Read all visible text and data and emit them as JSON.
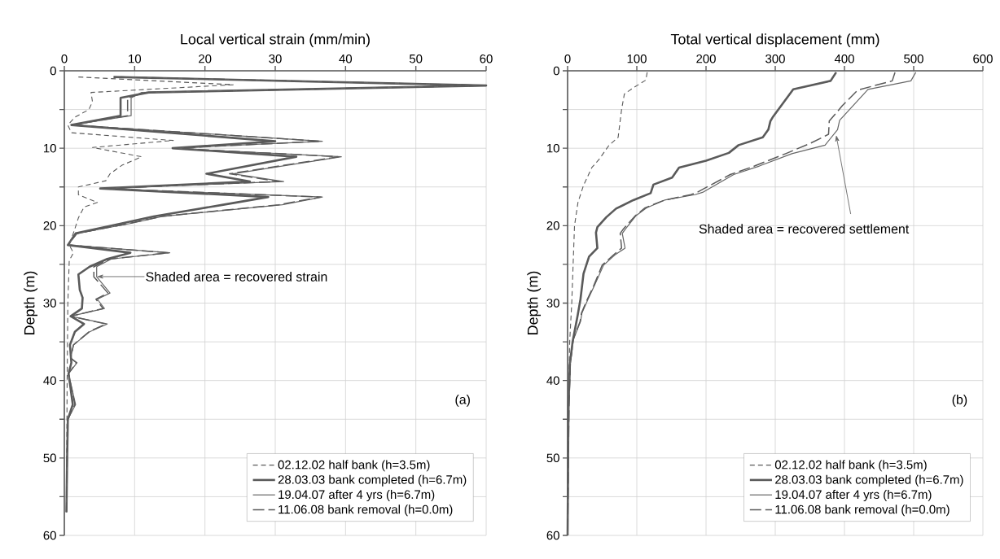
{
  "chart_data": [
    {
      "type": "line",
      "xlabel": "Local vertical strain (mm/min)",
      "ylabel": "Depth (m)",
      "xlim": [
        0,
        60
      ],
      "xticks": [
        0,
        10,
        20,
        30,
        40,
        50,
        60
      ],
      "ylim": [
        60,
        0
      ],
      "yticks": [
        0,
        {
          "value": 5,
          "label": null
        },
        10,
        {
          "value": 15,
          "label": null
        },
        20,
        {
          "value": 25,
          "label": null
        },
        30,
        {
          "value": 35,
          "label": null
        },
        40,
        {
          "value": 45,
          "label": null
        },
        50,
        {
          "value": 55,
          "label": null
        },
        60
      ],
      "grid": true,
      "legend": "bottom right",
      "annotations": [
        "Shaded area = recovered strain",
        "(a)"
      ],
      "series": [
        {
          "name": "02.12.02 half bank (h=3.5m)",
          "color": "#5a5a5a",
          "line_style": "dashed",
          "x": [
            2,
            24,
            3.8,
            4,
            3.5,
            1.5,
            0.5,
            1,
            15.5,
            4,
            11,
            8.2,
            6.5,
            5.9,
            2,
            2,
            4.7,
            2.8,
            2,
            1.5,
            0.7,
            1.3,
            0.7,
            0.5,
            0.4,
            0.3
          ],
          "values": [
            0.8,
            1.8,
            2.8,
            4,
            5,
            6,
            7,
            8,
            9,
            9.9,
            11.1,
            12.2,
            13.3,
            14.2,
            15,
            16,
            17,
            17.6,
            19,
            20.4,
            22.5,
            23.5,
            24.5,
            30,
            40,
            57
          ]
        },
        {
          "name": "28.03.03 bank completed (h=6.7m)",
          "color": "#5a5a5a",
          "line_style": "solid",
          "x": [
            7,
            60,
            12,
            8,
            8,
            1,
            30,
            15.4,
            33,
            20.2,
            26.4,
            5.1,
            29,
            22.6,
            12.7,
            8.2,
            1.6,
            0.5,
            9.4,
            6.1,
            3.6,
            2,
            2.2,
            2.6,
            2.5,
            0.9,
            2.8,
            1.5,
            0.8,
            1,
            0.6,
            1.2,
            0.5,
            0.4,
            0.3
          ],
          "values": [
            0.8,
            1.9,
            2.8,
            3.5,
            5.8,
            7,
            9.1,
            10,
            11.1,
            13.3,
            14.3,
            15.2,
            16.3,
            17.3,
            18.8,
            19.7,
            21,
            22.5,
            23.5,
            24.3,
            25.3,
            26.3,
            28.3,
            29.3,
            30.7,
            31.7,
            32.7,
            33.7,
            35.4,
            37.7,
            39.1,
            43.1,
            45,
            50,
            57
          ]
        },
        {
          "name": "19.04.07 after 4 yrs (h=6.7m)",
          "color": "#666666",
          "line_style": "solid",
          "x": [
            8,
            60,
            11,
            9.5,
            9.5,
            1,
            36.7,
            15.5,
            39.4,
            24,
            31.2,
            5.1,
            36.7,
            31,
            14,
            9.5,
            1.8,
            0.5,
            15,
            6.7,
            4.6,
            4.6,
            6.5,
            4.7,
            5.7,
            0.9,
            6.1,
            3.6,
            1.3,
            0.9,
            1.8,
            0.6,
            1.6,
            0.5,
            0.4,
            0.3
          ],
          "values": [
            0.8,
            1.9,
            2.8,
            3.5,
            5.8,
            7,
            9.1,
            10,
            11.1,
            13.3,
            14.3,
            15.2,
            16.3,
            17.3,
            18.8,
            19.7,
            21,
            22.5,
            23.5,
            24.3,
            25.3,
            26.6,
            28.7,
            29.5,
            30.7,
            31.7,
            32.7,
            33.7,
            35.4,
            37.1,
            37.7,
            39.1,
            43.1,
            45,
            50,
            57
          ]
        },
        {
          "name": "11.06.08 bank removal (h=0.0m)",
          "color": "#5a5a5a",
          "line_style": "dashed",
          "x": [
            8,
            60,
            11.5,
            9,
            9,
            1,
            36.5,
            15.5,
            39,
            23.5,
            30.5,
            5.1,
            36.5,
            30.5,
            13.8,
            9.3,
            1.8,
            0.5,
            14.8,
            6.5,
            4.2,
            4.2,
            6.2,
            4.5,
            5.5,
            0.9,
            5.9,
            3.5,
            1.3,
            0.9,
            1.7,
            0.6,
            1.5,
            0.5,
            0.4,
            0.3
          ],
          "values": [
            0.8,
            1.9,
            2.8,
            3.5,
            5.8,
            7,
            9.1,
            10,
            11.1,
            13.3,
            14.3,
            15.2,
            16.3,
            17.3,
            18.8,
            19.7,
            21,
            22.5,
            23.5,
            24.3,
            25.3,
            26.6,
            28.7,
            29.5,
            30.7,
            31.7,
            32.7,
            33.7,
            35.4,
            37.1,
            37.7,
            39.1,
            43.1,
            45,
            50,
            57
          ]
        }
      ]
    },
    {
      "type": "line",
      "xlabel": "Total vertical displacement (mm)",
      "ylabel": "Depth (m)",
      "xlim": [
        0,
        600
      ],
      "xticks": [
        0,
        100,
        200,
        300,
        400,
        500,
        600
      ],
      "ylim": [
        60,
        0
      ],
      "yticks": [
        0,
        {
          "value": 5,
          "label": null
        },
        10,
        {
          "value": 15,
          "label": null
        },
        20,
        {
          "value": 25,
          "label": null
        },
        30,
        {
          "value": 35,
          "label": null
        },
        40,
        {
          "value": 45,
          "label": null
        },
        50,
        {
          "value": 55,
          "label": null
        },
        60
      ],
      "grid": true,
      "legend": "bottom right",
      "annotations": [
        {
          "text": "Shaded area = recovered settlement",
          "x": 388,
          "y": 8.3
        },
        "(b)"
      ],
      "series": [
        {
          "name": "02.12.02 half bank (h=3.5m)",
          "color": "#5a5a5a",
          "line_style": "dashed",
          "x": [
            115,
            113,
            95,
            82,
            78,
            73,
            60,
            45,
            35,
            23,
            15,
            10,
            6,
            3,
            2,
            1,
            0
          ],
          "values": [
            0.2,
            1.2,
            2.2,
            3,
            5,
            8.6,
            9.6,
            11.5,
            12.5,
            14.8,
            17,
            20,
            30,
            35,
            40,
            45,
            55
          ]
        },
        {
          "name": "28.03.03 bank completed (h=6.7m)",
          "color": "#5a5a5a",
          "line_style": "solid",
          "x": [
            388,
            380,
            326,
            297,
            293,
            290,
            282,
            247,
            233,
            200,
            161,
            151,
            124,
            120,
            95,
            70,
            56,
            43,
            41,
            43,
            31,
            23,
            18.6,
            14.5,
            7.4,
            3.3,
            1.2,
            0
          ],
          "values": [
            0.2,
            1.3,
            2.4,
            5.9,
            6.5,
            7.6,
            8.6,
            9.6,
            10.6,
            11.6,
            12.5,
            13.8,
            14.7,
            15.8,
            16.7,
            17.8,
            18.9,
            20.2,
            20.9,
            22.9,
            24,
            26.2,
            29.5,
            31.6,
            34.9,
            37.8,
            43.3,
            60
          ]
        },
        {
          "name": "19.04.07 after 4 yrs (h=6.7m)",
          "color": "#666666",
          "line_style": "solid",
          "x": [
            503,
            496,
            434,
            393,
            390,
            372,
            324,
            277,
            240,
            195,
            184,
            140,
            114,
            99,
            83,
            79,
            83,
            68,
            52,
            39,
            29,
            20.7,
            18.6,
            8.3,
            4,
            2,
            0
          ],
          "values": [
            0.2,
            1.3,
            2.4,
            6.4,
            7.6,
            9.6,
            10.7,
            12.3,
            13.4,
            15.7,
            16,
            16.7,
            17.7,
            18.7,
            20.5,
            21,
            22.9,
            23.8,
            25.1,
            27.7,
            29.6,
            31.3,
            32.4,
            34.7,
            37.8,
            43.3,
            60
          ]
        },
        {
          "name": "11.06.08 bank removal (h=0.0m)",
          "color": "#5a5a5a",
          "line_style": "dashed",
          "x": [
            473,
            469,
            419,
            397,
            378,
            377,
            350,
            315,
            270,
            235,
            187,
            178,
            140,
            112,
            98,
            80,
            76,
            78,
            66,
            50,
            38,
            28,
            20,
            18,
            8,
            4,
            2,
            0
          ],
          "values": [
            0.2,
            1.3,
            2.5,
            4.5,
            6.5,
            8.2,
            9.4,
            10.7,
            12.3,
            13.4,
            15.7,
            16,
            16.7,
            17.7,
            18.7,
            20.5,
            21,
            22.9,
            23.8,
            25.1,
            27.7,
            29.6,
            31.3,
            32.4,
            34.7,
            37.8,
            43.3,
            60
          ]
        }
      ]
    }
  ]
}
